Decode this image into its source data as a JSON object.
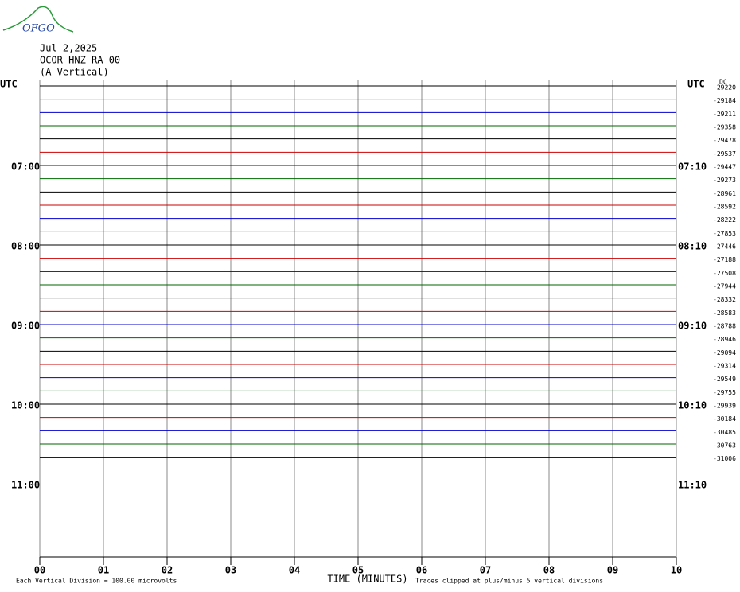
{
  "logo": "OFGO",
  "chart_data": {
    "type": "helicorder",
    "title": [
      "Jul 2,2025",
      "OCOR HNZ RA 00",
      "(A Vertical)"
    ],
    "left_header": "UTC",
    "right_header": "UTC",
    "offset_header": "DC",
    "x_label": "TIME (MINUTES)",
    "notes": [
      "Each Vertical Division =  100.00 microvolts",
      "Traces clipped at plus/minus 5 vertical divisions"
    ],
    "xlim": [
      0,
      10
    ],
    "xticks": [
      {
        "value": 0,
        "label": "00"
      },
      {
        "value": 1,
        "label": "01"
      },
      {
        "value": 2,
        "label": "02"
      },
      {
        "value": 3,
        "label": "03"
      },
      {
        "value": 4,
        "label": "04"
      },
      {
        "value": 5,
        "label": "05"
      },
      {
        "value": 6,
        "label": "06"
      },
      {
        "value": 7,
        "label": "07"
      },
      {
        "value": 8,
        "label": "08"
      },
      {
        "value": 9,
        "label": "09"
      },
      {
        "value": 10,
        "label": "10"
      }
    ],
    "left_times": [
      "07:00",
      "08:00",
      "09:00",
      "10:00",
      "11:00"
    ],
    "right_times": [
      "07:10",
      "08:10",
      "09:10",
      "10:10",
      "11:10"
    ],
    "trace_colors": [
      "#000000",
      "#cc0000",
      "#0000cc",
      "#006600"
    ],
    "offsets": [
      -29220,
      -29184,
      -29211,
      -29358,
      -29478,
      -29537,
      -29447,
      -29273,
      -28961,
      -28592,
      -28222,
      -27853,
      -27446,
      -27188,
      -27508,
      -27944,
      -28332,
      -28583,
      -28788,
      -28946,
      -29094,
      -29314,
      -29549,
      -29755,
      -29939,
      -30184,
      -30485,
      -30763,
      -31006
    ]
  }
}
